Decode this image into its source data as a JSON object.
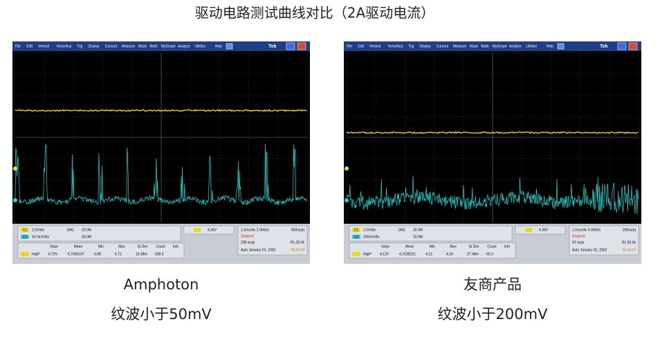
{
  "title": "驱动电路测试曲线对比（2A驱动电流）",
  "panels": [
    {
      "menu": [
        "File",
        "Edit",
        "Vertical",
        "Horiz/Acq",
        "Trig",
        "Display",
        "Cursors",
        "Measure",
        "Mask",
        "Math",
        "MyScope",
        "Analyze",
        "Utilities",
        "Help"
      ],
      "brand": "Tek",
      "channels": [
        "C1",
        "C2"
      ],
      "ch1_scale": "2.0V/div",
      "ch2_scale": "50.0mV/div",
      "impedance": "1MΩ",
      "bw1": "20.0M",
      "bw2": "20.0M",
      "trigger": "4.36V",
      "timebase": "1.0ms/div  2.0MS/s",
      "pt_div": "500ns/pt",
      "status": "Stopped",
      "acqs": "208 acqs",
      "record": "RL:20.0k",
      "date": "Auto    January 01, 2002",
      "time": "05:09:09",
      "measure_headers": [
        "Value",
        "Mean",
        "Min",
        "Max",
        "St Dev",
        "Count",
        "Info"
      ],
      "measure_row": [
        "High*",
        "6.72V",
        "6.7055197",
        "6.68",
        "6.72",
        "19.38m",
        "208.0"
      ],
      "caption": [
        "Amphoton",
        "纹波小于50mV"
      ]
    },
    {
      "menu": [
        "File",
        "Edit",
        "Vertical",
        "Horiz/Acq",
        "Trig",
        "Display",
        "Cursors",
        "Measure",
        "Mask",
        "Math",
        "MyScope",
        "Analyze",
        "Utilities",
        "Help"
      ],
      "brand": "Tek",
      "channels": [
        "C1",
        "C2"
      ],
      "ch1_scale": "2.0V/div",
      "ch2_scale": "200mV/div",
      "impedance": "1MΩ",
      "bw1": "20.0M",
      "bw2": "20.0M",
      "trigger": "4.36V",
      "timebase": "1.0ms/div  5.0MS/s",
      "pt_div": "200ns/pt",
      "status": "Stopped",
      "acqs": "92 acqs",
      "record": "RL:50.0k",
      "date": "Auto    January 01, 2002",
      "time": "05:42:56",
      "measure_headers": [
        "Value",
        "Mean",
        "Min",
        "Max",
        "St Dev",
        "Count",
        "Info"
      ],
      "measure_row": [
        "High*",
        "4.12V",
        "4.1538221",
        "4.12",
        "4.24",
        "27.48m",
        "92.0"
      ],
      "caption": [
        "友商产品",
        "纹波小于200mV"
      ]
    }
  ]
}
